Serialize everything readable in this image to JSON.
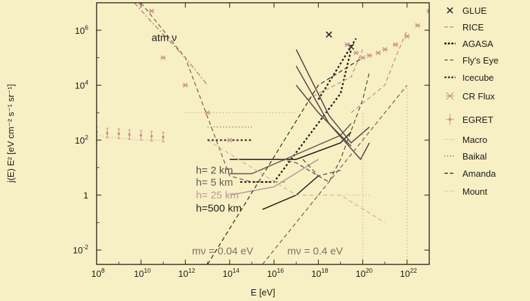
{
  "chart_data": {
    "type": "line",
    "x_scale": "log",
    "y_scale": "log",
    "xlim": [
      100000000.0,
      1e+23
    ],
    "ylim": [
      0.003,
      10000000.0
    ],
    "x_ticks": [
      {
        "base": "10",
        "exp": "8",
        "value": 100000000.0
      },
      {
        "base": "10",
        "exp": "10",
        "value": 10000000000.0
      },
      {
        "base": "10",
        "exp": "12",
        "value": 1000000000000.0
      },
      {
        "base": "10",
        "exp": "14",
        "value": 100000000000000.0
      },
      {
        "base": "10",
        "exp": "16",
        "value": 1e+16
      },
      {
        "base": "10",
        "exp": "18",
        "value": 1e+18
      },
      {
        "base": "10",
        "exp": "20",
        "value": 1e+20
      },
      {
        "base": "10",
        "exp": "22",
        "value": 1e+22
      }
    ],
    "y_ticks": [
      {
        "base": "10",
        "exp": "6",
        "value": 1000000.0
      },
      {
        "base": "10",
        "exp": "4",
        "value": 10000.0
      },
      {
        "base": "10",
        "exp": "2",
        "value": 100
      },
      {
        "base": "1",
        "exp": "",
        "value": 1
      },
      {
        "base": "10",
        "exp": "-2",
        "value": 0.01
      }
    ],
    "xlabel": "E [eV]",
    "ylabel": "j(E) E² [eV cm⁻² s⁻¹ sr⁻¹]",
    "grid": false,
    "legend_position": "right, outside plot",
    "legend": [
      {
        "label": "GLUE",
        "style": "x-marker",
        "color": "#333333"
      },
      {
        "label": "RICE",
        "style": "dash",
        "color": "#c98f89"
      },
      {
        "label": "AGASA",
        "style": "dot-heavy",
        "color": "#111111"
      },
      {
        "label": "Fly's Eye",
        "style": "dash",
        "color": "#8a5a5a"
      },
      {
        "label": "Icecube",
        "style": "dot-heavy",
        "color": "#4a3a3a"
      },
      {
        "label": "CR Flux",
        "style": "star-marker",
        "color": "#c98f89"
      },
      {
        "label": "EGRET",
        "style": "errorbar-marker",
        "color": "#c98f89"
      },
      {
        "label": "Macro",
        "style": "dot-light",
        "color": "#d9b0aa"
      },
      {
        "label": "Baikal",
        "style": "dot-light",
        "color": "#8a7070"
      },
      {
        "label": "Amanda",
        "style": "dash",
        "color": "#4a2a2a"
      },
      {
        "label": "Mount",
        "style": "dot-light",
        "color": "#d9b0aa"
      }
    ],
    "annotations": [
      {
        "text": "atm ν",
        "x": 30000000000.0,
        "y": 400000.0,
        "color": "#1a1a1a"
      },
      {
        "text": "h= 2 km",
        "x": 3000000000000.0,
        "y": 6,
        "color": "#5a4a4a"
      },
      {
        "text": "h= 5 km",
        "x": 3000000000000.0,
        "y": 2.2,
        "color": "#6a5a5a"
      },
      {
        "text": "h= 25 km",
        "x": 3000000000000.0,
        "y": 0.75,
        "color": "#b89a95"
      },
      {
        "text": "h=500 km",
        "x": 3000000000000.0,
        "y": 0.25,
        "color": "#2a2020"
      },
      {
        "text": "mν = 0.04 eV",
        "x": 2000000000000.0,
        "y": 0.007,
        "color": "#8a6a66"
      },
      {
        "text": "mν = 0.4 eV",
        "x": 4e+16,
        "y": 0.007,
        "color": "#8a6a66"
      }
    ],
    "series": [
      {
        "style": "dash",
        "color": "#8a5a5a",
        "x": [
          10000000000.0,
          1000000000000.0,
          100000000000000.0,
          1000000000000000.0,
          2e+16,
          3e+16
        ],
        "y": [
          10000000.0,
          100000.0,
          5,
          3,
          3,
          3
        ]
      },
      {
        "style": "dot-dash",
        "color": "#b07a7a",
        "x": [
          5000000000.0,
          30000000000.0,
          1000000000000.0,
          10000000000000.0
        ],
        "y": [
          10000000.0,
          2000000.0,
          100000.0,
          10000.0
        ]
      },
      {
        "style": "dot-heavy",
        "color": "#222222",
        "x": [
          300000000000000.0,
          1e+16,
          1e+19,
          3e+19
        ],
        "y": [
          3,
          3,
          5000.0,
          200000.0
        ]
      },
      {
        "style": "dot-heavy",
        "color": "#222222",
        "x": [
          1e+18,
          5e+19
        ],
        "y": [
          3000,
          500000.0
        ]
      },
      {
        "style": "dash",
        "color": "#c98f89",
        "x": [
          3e+17,
          3e+19,
          1e+20
        ],
        "y": [
          3000.0,
          20000.0,
          200000.0
        ]
      },
      {
        "style": "solid",
        "color": "#2a2020",
        "x": [
          100000000000000.0,
          1e+17,
          1e+19,
          3e+19
        ],
        "y": [
          20,
          20,
          80,
          200
        ]
      },
      {
        "style": "solid",
        "color": "#6a5a5a",
        "x": [
          100000000000000.0,
          1000000000000000.0,
          1e+17,
          1e+19,
          3e+19
        ],
        "y": [
          6,
          6,
          30,
          150,
          400
        ]
      },
      {
        "style": "solid",
        "color": "#b89a95",
        "x": [
          100000000000000.0,
          1e+16,
          1e+18
        ],
        "y": [
          1,
          2,
          20
        ]
      },
      {
        "style": "solid",
        "color": "#2a2020",
        "x": [
          3000000000000000.0,
          1e+17,
          1e+18
        ],
        "y": [
          0.3,
          1,
          5
        ]
      },
      {
        "style": "solid",
        "color": "#5a4a4a",
        "x": [
          1e+17,
          3e+18,
          3e+19,
          2e+20
        ],
        "y": [
          200000.0,
          800,
          80,
          300
        ]
      },
      {
        "style": "solid",
        "color": "#5a4a4a",
        "x": [
          1e+17,
          3e+18,
          8e+19,
          2e+20
        ],
        "y": [
          50000.0,
          400,
          20,
          80
        ]
      },
      {
        "style": "solid",
        "color": "#5a4a4a",
        "x": [
          1e+17,
          1e+18,
          3e+19
        ],
        "y": [
          10000.0,
          1000.0,
          60
        ]
      },
      {
        "style": "dash",
        "color": "#5a4a4a",
        "x": [
          2e+16,
          1e+17,
          1e+18,
          3e+18,
          1e+19,
          1e+20,
          2e+20
        ],
        "y": [
          20,
          15,
          5,
          3,
          20,
          3000.0,
          30000.0
        ]
      },
      {
        "style": "dash",
        "color": "#5a4a4a",
        "x": [
          2e+17,
          1e+18,
          1e+19
        ],
        "y": [
          20,
          5,
          8
        ]
      },
      {
        "style": "dash",
        "color": "#4a2a2a",
        "x": [
          10000000000000.0,
          1e+18,
          1e+20
        ],
        "y": [
          0.003,
          10000.0,
          100000.0
        ]
      },
      {
        "style": "dash",
        "color": "#8a5a5a",
        "x": [
          3000000000000000.0,
          1e+18,
          1e+22
        ],
        "y": [
          0.003,
          1,
          10000.0
        ]
      },
      {
        "style": "dash",
        "color": "#c98f89",
        "x": [
          3e+19,
          1e+21,
          3e+21,
          1e+22
        ],
        "y": [
          1000.0,
          10000.0,
          100000.0,
          1000000.0
        ]
      },
      {
        "style": "dash",
        "color": "#d9b0aa",
        "x": [
          10000000000000.0,
          1000000000000000.0,
          1e+17,
          1e+19,
          1e+21
        ],
        "y": [
          100,
          10,
          1,
          1,
          0.1
        ]
      },
      {
        "style": "dot-light",
        "color": "#d9b0aa",
        "x": [
          100000000.0,
          1000000000.0,
          10000000000.0,
          100000000000.0
        ],
        "y": [
          150,
          120,
          100,
          100
        ]
      },
      {
        "style": "dot-light",
        "color": "#d9b0aa",
        "x": [
          1000000000000.0,
          10000000000000.0,
          100000000000000.0,
          1000000000000000.0,
          1e+16,
          1e+17
        ],
        "y": [
          1000.0,
          1000.0,
          1000.0,
          1000.0,
          1000.0,
          1000.0
        ]
      },
      {
        "style": "dot-light",
        "color": "#8a7070",
        "x": [
          10000000000000.0,
          100000000000000.0,
          1000000000000000.0
        ],
        "y": [
          300,
          300,
          300
        ]
      },
      {
        "style": "dot-heavy",
        "color": "#4a3a3a",
        "x": [
          10000000000000.0,
          100000000000000.0,
          1000000000000000.0
        ],
        "y": [
          100,
          100,
          100
        ]
      },
      {
        "style": "dot-light",
        "color": "#d9b0aa",
        "x": [
          1e+19,
          1e+20,
          2e+20
        ],
        "y": [
          1,
          1,
          1
        ]
      },
      {
        "style": "dot-light",
        "color": "#d9b0aa",
        "x": [
          1e+20,
          1e+20
        ],
        "y": [
          1000.0,
          0.003
        ]
      },
      {
        "style": "dot-light",
        "color": "#d9b0aa",
        "x": [
          1e+22,
          1e+22
        ],
        "y": [
          10000.0,
          0.003
        ]
      }
    ],
    "glue_points": {
      "x": [
        3e+18,
        3e+19
      ],
      "y": [
        700000.0,
        250000.0
      ]
    },
    "cr_flux_points": {
      "x": [
        10000000000.0,
        30000000000.0,
        100000000000.0,
        1000000000000.0,
        10000000000000.0,
        100000000000000.0,
        2e+19,
        5e+19,
        1e+20,
        2e+20,
        5e+20,
        1e+21,
        3e+21,
        1e+22,
        3e+22,
        1e+23
      ],
      "y": [
        10000000.0,
        5000000.0,
        100000.0,
        10000.0,
        1000.0,
        100,
        300000.0,
        150000.0,
        100000.0,
        120000.0,
        150000.0,
        200000.0,
        300000.0,
        600000.0,
        1500000.0,
        5000000.0
      ]
    },
    "egret_points": {
      "x": [
        100000000.0,
        300000000.0,
        1000000000.0,
        3000000000.0,
        10000000000.0,
        30000000000.0,
        100000000000.0
      ],
      "y": [
        200,
        180,
        170,
        160,
        150,
        140,
        130
      ]
    }
  }
}
